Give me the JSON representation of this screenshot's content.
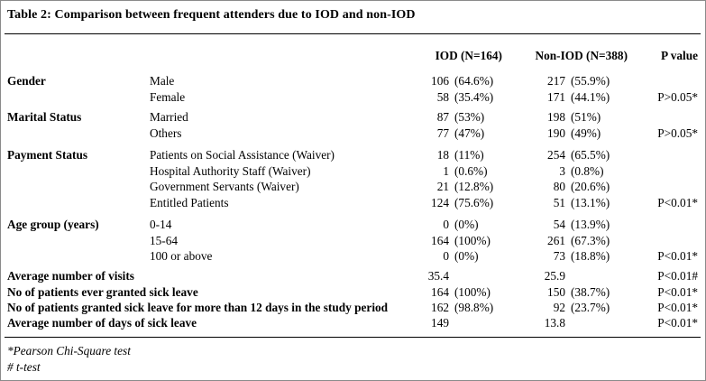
{
  "title": "Table 2: Comparison between frequent attenders due to IOD and non-IOD",
  "headers": {
    "iod": "IOD (N=164)",
    "noniod": "Non-IOD (N=388)",
    "pvalue": "P value"
  },
  "groups": [
    {
      "label": "Gender",
      "rows": [
        {
          "sub": "Male",
          "iod_n": "106",
          "iod_p": "(64.6%)",
          "non_n": "217",
          "non_p": "(55.9%)",
          "p": ""
        },
        {
          "sub": "Female",
          "iod_n": "58",
          "iod_p": "(35.4%)",
          "non_n": "171",
          "non_p": "(44.1%)",
          "p": "P>0.05*"
        }
      ]
    },
    {
      "label": "Marital Status",
      "rows": [
        {
          "sub": "Married",
          "iod_n": "87",
          "iod_p": "(53%)",
          "non_n": "198",
          "non_p": "(51%)",
          "p": ""
        },
        {
          "sub": "Others",
          "iod_n": "77",
          "iod_p": "(47%)",
          "non_n": "190",
          "non_p": "(49%)",
          "p": "P>0.05*"
        }
      ]
    },
    {
      "label": "Payment Status",
      "rows": [
        {
          "sub": "Patients on Social Assistance (Waiver)",
          "iod_n": "18",
          "iod_p": "(11%)",
          "non_n": "254",
          "non_p": "(65.5%)",
          "p": ""
        },
        {
          "sub": "Hospital Authority Staff (Waiver)",
          "iod_n": "1",
          "iod_p": "(0.6%)",
          "non_n": "3",
          "non_p": "(0.8%)",
          "p": ""
        },
        {
          "sub": "Government Servants (Waiver)",
          "iod_n": "21",
          "iod_p": "(12.8%)",
          "non_n": "80",
          "non_p": "(20.6%)",
          "p": ""
        },
        {
          "sub": "Entitled Patients",
          "iod_n": "124",
          "iod_p": "(75.6%)",
          "non_n": "51",
          "non_p": "(13.1%)",
          "p": "P<0.01*"
        }
      ]
    },
    {
      "label": "Age group (years)",
      "rows": [
        {
          "sub": "0-14",
          "iod_n": "0",
          "iod_p": "(0%)",
          "non_n": "54",
          "non_p": "(13.9%)",
          "p": ""
        },
        {
          "sub": "15-64",
          "iod_n": "164",
          "iod_p": "(100%)",
          "non_n": "261",
          "non_p": "(67.3%)",
          "p": ""
        },
        {
          "sub": "100 or above",
          "iod_n": "0",
          "iod_p": "(0%)",
          "non_n": "73",
          "non_p": "(18.8%)",
          "p": "P<0.01*"
        }
      ]
    }
  ],
  "summary": [
    {
      "label": "Average number of visits",
      "iod_n": "35.4",
      "iod_p": "",
      "non_n": "25.9",
      "non_p": "",
      "p": "P<0.01#"
    },
    {
      "label": "No of patients ever granted sick leave",
      "iod_n": "164",
      "iod_p": "(100%)",
      "non_n": "150",
      "non_p": "(38.7%)",
      "p": "P<0.01*"
    },
    {
      "label": "No of patients granted sick leave for more than 12 days in the  study period",
      "iod_n": "162",
      "iod_p": "(98.8%)",
      "non_n": "92",
      "non_p": "(23.7%)",
      "p": "P<0.01*"
    },
    {
      "label": "Average number of days of sick leave",
      "iod_n": "149",
      "iod_p": "",
      "non_n": "13.8",
      "non_p": "",
      "p": "P<0.01*"
    }
  ],
  "footnotes": [
    "*Pearson Chi-Square test",
    "# t-test"
  ]
}
